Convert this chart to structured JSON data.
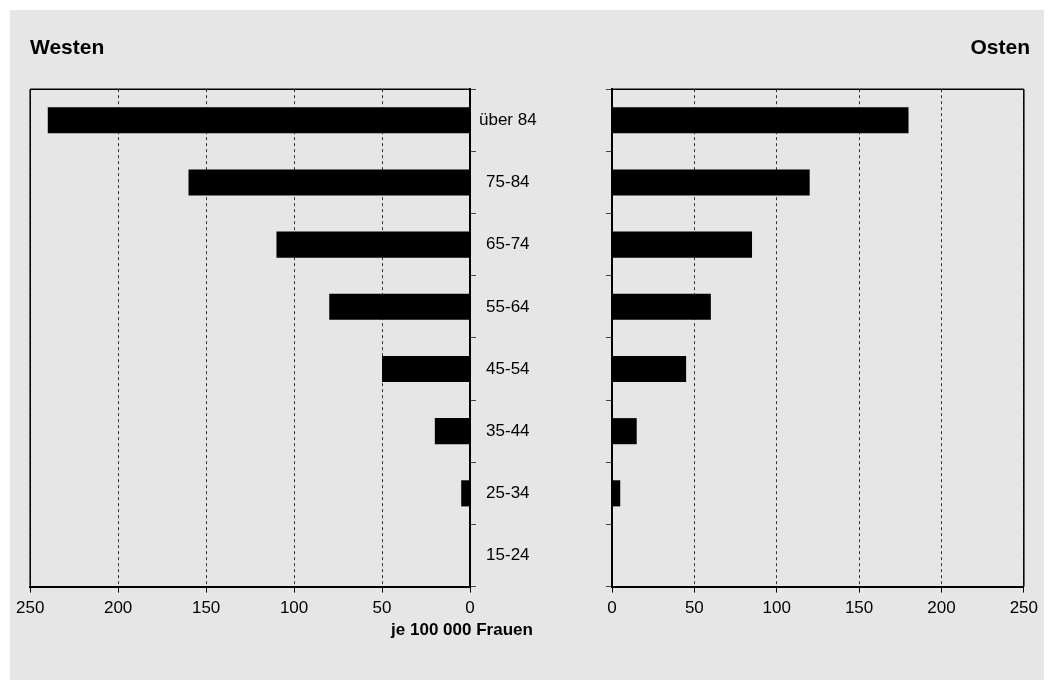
{
  "chart_data": [
    {
      "type": "bar",
      "title": "Westen",
      "orientation": "horizontal",
      "categories": [
        "über 84",
        "75-84",
        "65-74",
        "55-64",
        "45-54",
        "35-44",
        "25-34",
        "15-24"
      ],
      "xlabel": "je 100 000 Frauen",
      "xlim": [
        250,
        0
      ],
      "xticks": [
        250,
        200,
        150,
        100,
        50,
        0
      ],
      "grid": "x",
      "legend": false,
      "series": [
        {
          "color": "#000000",
          "values": [
            240,
            160,
            110,
            80,
            50,
            20,
            5,
            0
          ]
        }
      ]
    },
    {
      "type": "bar",
      "title": "Osten",
      "orientation": "horizontal",
      "categories": [
        null,
        null,
        null,
        null,
        null,
        null,
        null,
        null
      ],
      "xlim": [
        0,
        250
      ],
      "xticks": [
        0,
        50,
        100,
        150,
        200,
        250
      ],
      "grid": "x",
      "legend": false,
      "tick_labels": "x",
      "series": [
        {
          "color": "#000000",
          "values": [
            180,
            120,
            85,
            60,
            45,
            15,
            5,
            0
          ]
        }
      ]
    }
  ]
}
